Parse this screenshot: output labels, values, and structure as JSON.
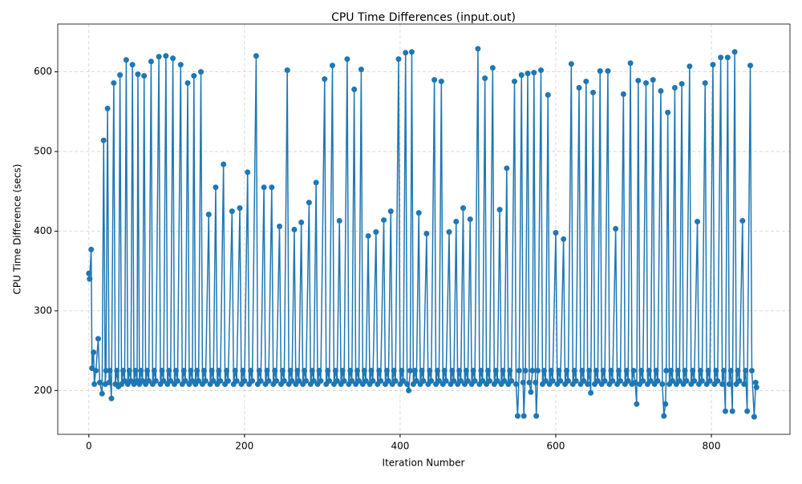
{
  "chart_data": {
    "type": "line",
    "title": "CPU Time Differences (input.out)",
    "x_label": "Iteration Number",
    "y_label": "CPU Time Difference (secs)",
    "color": "#1f77b4",
    "grid": true,
    "xlim": [
      -40,
      901
    ],
    "ylim": [
      145,
      660
    ],
    "xticks": [
      0,
      200,
      400,
      600,
      800
    ],
    "yticks": [
      200,
      300,
      400,
      500,
      600
    ],
    "x": [
      0,
      1,
      3,
      4,
      6,
      7,
      9,
      12,
      14,
      17,
      19,
      21,
      22,
      24,
      26,
      27,
      29,
      32,
      34,
      36,
      38,
      40,
      42,
      44,
      46,
      48,
      50,
      52,
      54,
      56,
      58,
      60,
      62,
      63,
      65,
      67,
      69,
      71,
      73,
      75,
      77,
      80,
      82,
      84,
      86,
      90,
      92,
      94,
      96,
      99,
      101,
      103,
      105,
      108,
      110,
      112,
      114,
      118,
      120,
      122,
      124,
      127,
      129,
      131,
      133,
      135,
      137,
      139,
      141,
      144,
      146,
      148,
      150,
      154,
      156,
      158,
      160,
      163,
      165,
      167,
      169,
      173,
      175,
      177,
      179,
      184,
      186,
      188,
      190,
      194,
      196,
      198,
      200,
      204,
      206,
      208,
      210,
      215,
      217,
      219,
      221,
      225,
      227,
      229,
      231,
      235,
      237,
      239,
      241,
      245,
      247,
      249,
      251,
      255,
      257,
      259,
      261,
      264,
      266,
      268,
      270,
      273,
      275,
      277,
      279,
      283,
      285,
      287,
      289,
      292,
      294,
      296,
      298,
      303,
      305,
      307,
      309,
      313,
      315,
      317,
      319,
      322,
      324,
      326,
      328,
      332,
      334,
      336,
      338,
      341,
      343,
      345,
      347,
      350,
      352,
      354,
      356,
      359,
      361,
      363,
      365,
      369,
      371,
      373,
      375,
      379,
      381,
      383,
      385,
      388,
      390,
      392,
      394,
      398,
      400,
      402,
      404,
      407,
      409,
      411,
      413,
      415,
      417,
      419,
      421,
      424,
      426,
      428,
      430,
      434,
      436,
      438,
      440,
      444,
      446,
      448,
      450,
      453,
      455,
      457,
      459,
      463,
      465,
      467,
      469,
      472,
      474,
      476,
      478,
      481,
      483,
      485,
      487,
      490,
      492,
      494,
      496,
      500,
      502,
      504,
      506,
      509,
      511,
      513,
      515,
      519,
      521,
      523,
      525,
      528,
      530,
      532,
      534,
      537,
      539,
      541,
      543,
      547,
      549,
      551,
      553,
      556,
      558,
      559,
      561,
      564,
      566,
      568,
      570,
      572,
      574,
      575,
      577,
      581,
      583,
      585,
      587,
      590,
      592,
      594,
      596,
      600,
      602,
      604,
      606,
      610,
      612,
      614,
      616,
      620,
      622,
      624,
      626,
      630,
      632,
      634,
      636,
      639,
      641,
      643,
      645,
      648,
      650,
      652,
      654,
      657,
      659,
      661,
      663,
      667,
      669,
      671,
      673,
      677,
      679,
      681,
      683,
      687,
      689,
      691,
      693,
      696,
      698,
      700,
      702,
      704,
      706,
      708,
      710,
      712,
      716,
      718,
      720,
      722,
      725,
      727,
      729,
      731,
      735,
      737,
      739,
      741,
      742,
      744,
      746,
      748,
      750,
      753,
      755,
      757,
      759,
      762,
      764,
      766,
      768,
      772,
      774,
      776,
      778,
      782,
      784,
      786,
      788,
      792,
      794,
      796,
      798,
      802,
      804,
      806,
      808,
      812,
      814,
      816,
      818,
      821,
      823,
      825,
      827,
      830,
      832,
      834,
      836,
      840,
      842,
      844,
      846,
      850,
      852,
      855,
      857,
      858
    ],
    "values": [
      347,
      340,
      377,
      228,
      248,
      208,
      225,
      265,
      210,
      196,
      514,
      208,
      225,
      554,
      210,
      225,
      190,
      586,
      208,
      225,
      205,
      596,
      208,
      225,
      212,
      615,
      208,
      225,
      212,
      609,
      208,
      225,
      212,
      597,
      208,
      225,
      212,
      595,
      208,
      225,
      212,
      613,
      208,
      225,
      212,
      619,
      208,
      225,
      212,
      620,
      208,
      225,
      212,
      617,
      208,
      225,
      212,
      609,
      208,
      225,
      212,
      586,
      208,
      225,
      212,
      595,
      208,
      225,
      212,
      600,
      208,
      225,
      212,
      421,
      208,
      225,
      212,
      455,
      208,
      225,
      212,
      484,
      208,
      225,
      212,
      425,
      208,
      225,
      212,
      429,
      208,
      225,
      212,
      474,
      208,
      225,
      212,
      620,
      208,
      225,
      212,
      455,
      208,
      225,
      212,
      455,
      208,
      225,
      212,
      406,
      208,
      225,
      212,
      602,
      208,
      225,
      212,
      402,
      208,
      225,
      212,
      411,
      208,
      225,
      212,
      436,
      208,
      225,
      212,
      461,
      208,
      225,
      212,
      591,
      208,
      225,
      212,
      608,
      208,
      225,
      212,
      413,
      208,
      225,
      212,
      616,
      208,
      225,
      212,
      578,
      208,
      225,
      212,
      603,
      208,
      225,
      212,
      394,
      208,
      225,
      212,
      399,
      208,
      225,
      212,
      414,
      208,
      225,
      212,
      425,
      208,
      225,
      212,
      616,
      208,
      225,
      212,
      624,
      208,
      200,
      225,
      625,
      208,
      225,
      212,
      423,
      208,
      225,
      212,
      397,
      208,
      225,
      212,
      590,
      208,
      225,
      212,
      588,
      208,
      225,
      212,
      399,
      208,
      225,
      212,
      412,
      208,
      225,
      212,
      429,
      208,
      225,
      212,
      415,
      208,
      225,
      212,
      629,
      208,
      225,
      212,
      592,
      208,
      225,
      212,
      605,
      208,
      225,
      212,
      427,
      208,
      225,
      212,
      479,
      208,
      225,
      212,
      588,
      208,
      168,
      225,
      596,
      210,
      168,
      225,
      598,
      210,
      198,
      225,
      599,
      210,
      168,
      225,
      602,
      208,
      225,
      212,
      571,
      208,
      225,
      212,
      398,
      208,
      225,
      212,
      390,
      208,
      225,
      212,
      610,
      208,
      225,
      212,
      580,
      208,
      225,
      212,
      588,
      208,
      225,
      197,
      574,
      208,
      225,
      212,
      601,
      208,
      225,
      212,
      601,
      208,
      225,
      212,
      403,
      208,
      225,
      212,
      572,
      208,
      225,
      212,
      611,
      208,
      225,
      210,
      183,
      589,
      208,
      225,
      212,
      586,
      208,
      225,
      212,
      590,
      208,
      225,
      212,
      576,
      208,
      168,
      183,
      225,
      549,
      208,
      225,
      212,
      580,
      208,
      225,
      212,
      585,
      208,
      225,
      212,
      607,
      208,
      225,
      212,
      412,
      208,
      225,
      212,
      586,
      208,
      225,
      212,
      609,
      208,
      225,
      212,
      618,
      208,
      225,
      174,
      618,
      208,
      225,
      174,
      625,
      208,
      225,
      212,
      413,
      208,
      225,
      174,
      608,
      225,
      167,
      210,
      204
    ]
  }
}
